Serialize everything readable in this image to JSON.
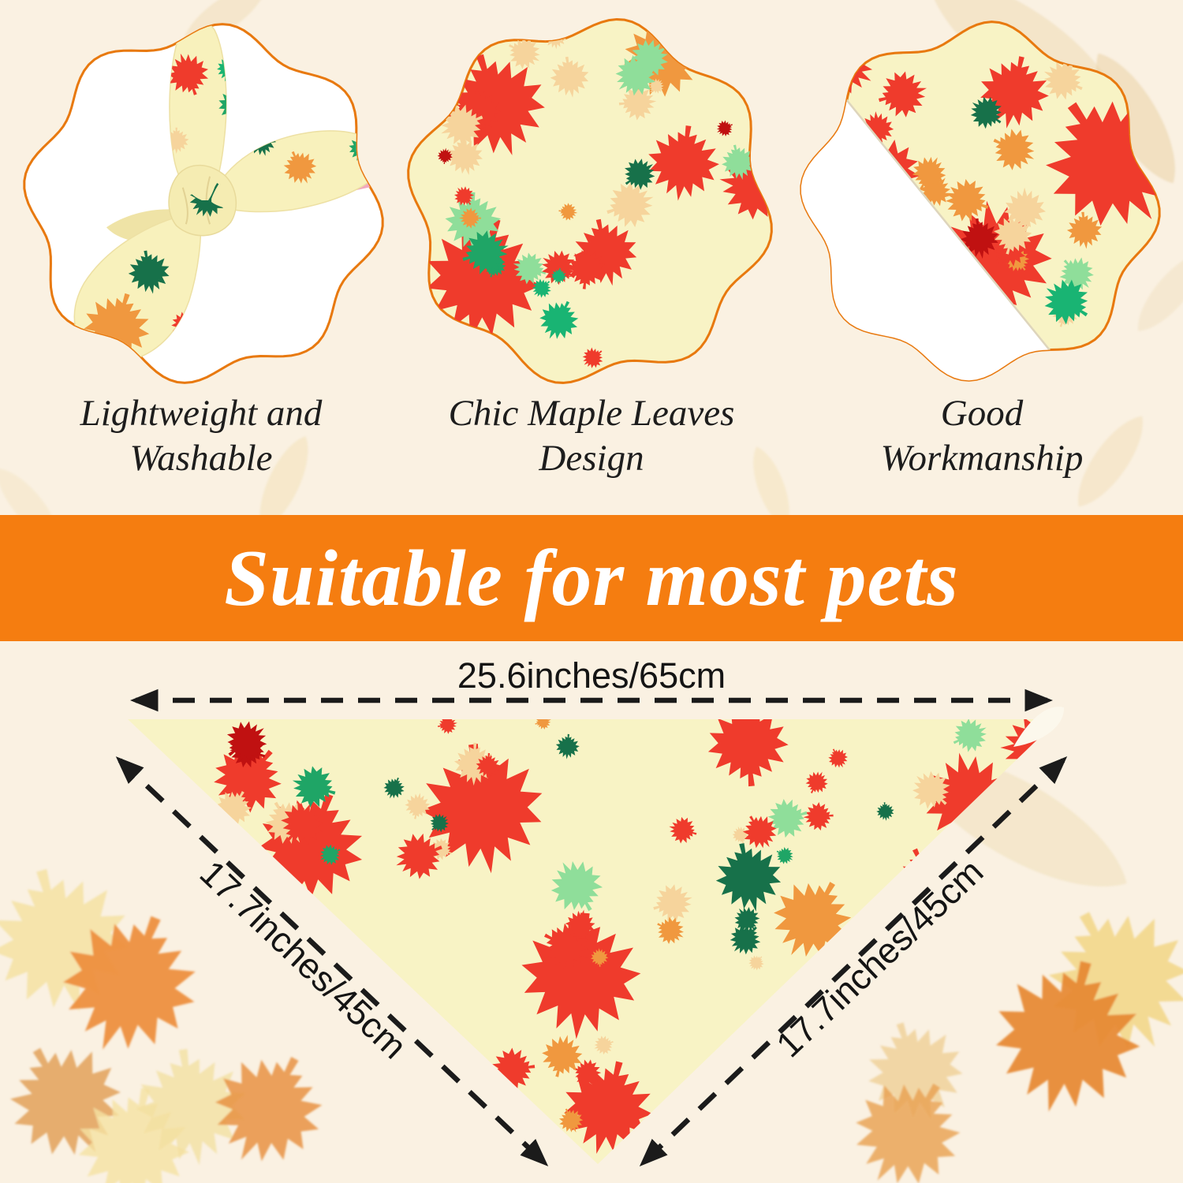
{
  "features": [
    {
      "caption_line1": "Lightweight and",
      "caption_line2": "Washable"
    },
    {
      "caption_line1": "Chic Maple Leaves",
      "caption_line2": "Design"
    },
    {
      "caption_line1": "Good",
      "caption_line2": "Workmanship"
    }
  ],
  "banner": {
    "text": "Suitable for most pets",
    "bg_color": "#F57D10",
    "text_color": "#FFFFFF"
  },
  "dimensions": {
    "top": "25.6inches/65cm",
    "left": "17.7inches/45cm",
    "right": "17.7inches/45cm"
  },
  "palette": {
    "background": "#FAF1E2",
    "frame_border": "#E8790F",
    "fabric_yellow": "#F8F3C5",
    "fabric_back_white": "#FFFFFF",
    "bow_fabric": "#F8F1BC",
    "bow_fabric_shade": "#EFE3A6",
    "pink_accent": "#F2A9BE",
    "leaf_red": "#EF3B2C",
    "leaf_dark_red": "#C01111",
    "leaf_orange": "#F0983F",
    "leaf_peach": "#F6D49C",
    "leaf_green_dark": "#17714A",
    "leaf_green": "#1FA566",
    "leaf_teal": "#19B473",
    "leaf_green_light": "#8FDE9A",
    "text_dark": "#1D1D1D",
    "arrow_black": "#1B1B1B",
    "watermark_tan": "#EFD9AE"
  }
}
